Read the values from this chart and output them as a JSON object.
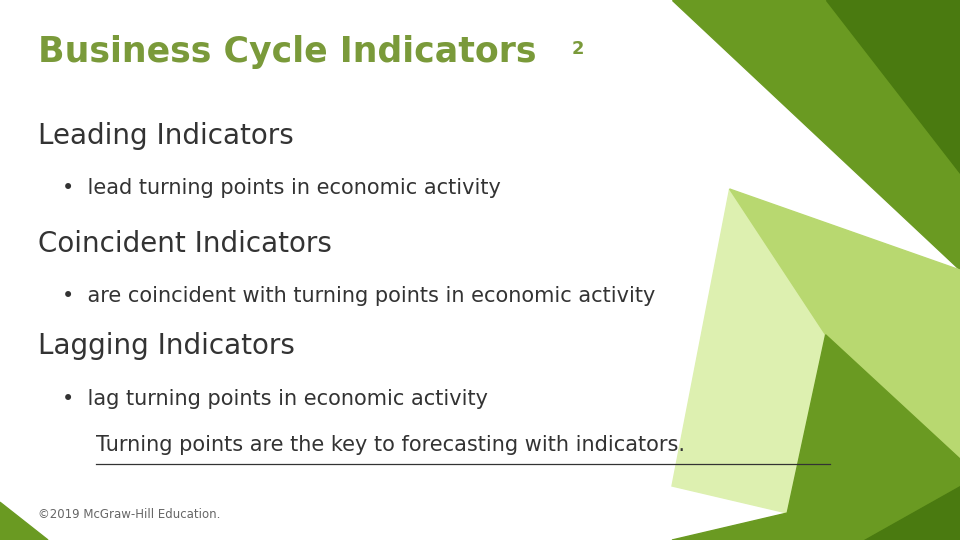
{
  "title": "Business Cycle Indicators",
  "title_subscript": "2",
  "title_color": "#7a9a3a",
  "background_color": "#ffffff",
  "sections": [
    {
      "heading": "Leading Indicators",
      "bullet": "lead turning points in economic activity"
    },
    {
      "heading": "Coincident Indicators",
      "bullet": "are coincident with turning points in economic activity"
    },
    {
      "heading": "Lagging Indicators",
      "bullet": "lag turning points in economic activity"
    }
  ],
  "note": "Turning points are the key to forecasting with indicators.",
  "copyright": "©2019 McGraw-Hill Education.",
  "heading_color": "#333333",
  "bullet_color": "#333333",
  "note_color": "#333333",
  "copyright_color": "#666666",
  "green_dark": "#4a7a10",
  "green_mid": "#6a9a22",
  "green_light": "#b8d870",
  "green_lightest": "#ddf0b0"
}
